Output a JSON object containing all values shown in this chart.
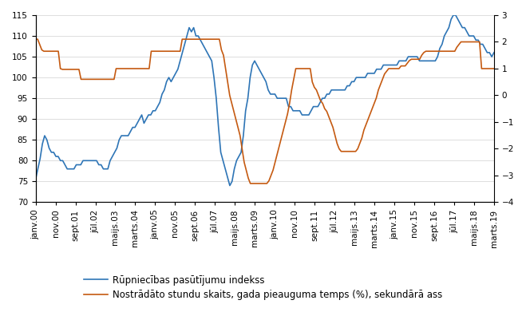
{
  "blue_label": "Rūpniecības pasūtījumu indekss",
  "orange_label": "Nostrādāto stundu skaits, gada pieauguma temps (%), sekundārā ass",
  "left_ylim": [
    70,
    115
  ],
  "right_ylim": [
    -4.0,
    3.0
  ],
  "left_yticks": [
    70,
    75,
    80,
    85,
    90,
    95,
    100,
    105,
    110,
    115
  ],
  "right_yticks": [
    -4.0,
    -3.0,
    -2.0,
    -1.0,
    0.0,
    1.0,
    2.0,
    3.0
  ],
  "blue_color": "#2E75B6",
  "orange_color": "#C55A11",
  "line_width": 1.2,
  "tick_label_fontsize": 7.5,
  "legend_fontsize": 8.5,
  "background_color": "#ffffff",
  "x_tick_labels": [
    "janv.00",
    "nov.00",
    "sept.01",
    "jūl.02",
    "maijs.03",
    "marts.04",
    "janv.05",
    "nov.05",
    "sept.06",
    "jūl.07",
    "maijs.08",
    "marts.09",
    "janv.10",
    "nov.10",
    "sept.11",
    "jūl.12",
    "maijs.13",
    "marts.14",
    "janv.15",
    "nov.15",
    "sept.16",
    "jūl.17",
    "maijs.18",
    "marts.19"
  ],
  "blue_data": [
    75.5,
    78,
    80.5,
    84,
    86,
    85,
    83,
    82,
    82,
    81,
    81,
    80,
    80,
    79,
    78,
    78,
    78,
    78,
    79,
    79,
    79,
    80,
    80,
    80,
    80,
    80,
    80,
    80,
    79,
    79,
    78,
    78,
    78,
    80,
    81,
    82,
    83,
    85,
    86,
    86,
    86,
    86,
    87,
    88,
    88,
    89,
    90,
    91,
    89,
    90,
    91,
    91,
    92,
    92,
    93,
    94,
    96,
    97,
    99,
    100,
    99,
    100,
    101,
    102,
    104,
    106,
    108,
    110,
    112,
    111,
    112,
    110,
    110,
    109,
    108,
    107,
    106,
    105,
    104,
    100,
    95,
    88,
    82,
    80,
    78,
    76,
    74,
    75,
    78,
    80,
    81,
    82,
    86,
    92,
    95,
    100,
    103,
    104,
    103,
    102,
    101,
    100,
    99,
    97,
    96,
    96,
    96,
    95,
    95,
    95,
    95,
    95,
    93,
    93,
    92,
    92,
    92,
    92,
    91,
    91,
    91,
    91,
    92,
    93,
    93,
    93,
    94,
    95,
    95,
    96,
    96,
    97,
    97,
    97,
    97,
    97,
    97,
    97,
    98,
    98,
    99,
    99,
    100,
    100,
    100,
    100,
    100,
    101,
    101,
    101,
    101,
    102,
    102,
    102,
    103,
    103,
    103,
    103,
    103,
    103,
    103,
    104,
    104,
    104,
    104,
    105,
    105,
    105,
    105,
    105,
    104,
    104,
    104,
    104,
    104,
    104,
    104,
    104,
    105,
    107,
    108,
    110,
    111,
    112,
    114,
    115,
    115,
    114,
    113,
    112,
    112,
    111,
    110,
    110,
    110,
    109,
    109,
    108,
    108,
    107,
    106,
    106,
    105,
    106
  ],
  "orange_data": [
    2.1,
    2.1,
    1.9,
    1.7,
    1.65,
    1.65,
    1.65,
    1.65,
    1.65,
    1.65,
    1.65,
    1.65,
    1.0,
    0.97,
    0.97,
    0.97,
    0.97,
    0.97,
    0.97,
    0.97,
    0.97,
    0.97,
    0.6,
    0.6,
    0.6,
    0.6,
    0.6,
    0.6,
    0.6,
    0.6,
    0.6,
    0.6,
    0.6,
    0.6,
    0.6,
    0.6,
    0.6,
    0.6,
    0.6,
    1.0,
    1.0,
    1.0,
    1.0,
    1.0,
    1.0,
    1.0,
    1.0,
    1.0,
    1.0,
    1.0,
    1.0,
    1.0,
    1.0,
    1.0,
    1.0,
    1.0,
    1.65,
    1.65,
    1.65,
    1.65,
    1.65,
    1.65,
    1.65,
    1.65,
    1.65,
    1.65,
    1.65,
    1.65,
    1.65,
    1.65,
    1.65,
    2.1,
    2.1,
    2.1,
    2.1,
    2.1,
    2.1,
    2.1,
    2.1,
    2.1,
    2.1,
    2.1,
    2.1,
    2.1,
    2.1,
    2.1,
    2.1,
    2.1,
    2.1,
    2.1,
    1.7,
    1.5,
    1.0,
    0.5,
    0.0,
    -0.3,
    -0.6,
    -0.9,
    -1.2,
    -1.5,
    -2.0,
    -2.5,
    -2.8,
    -3.1,
    -3.3,
    -3.3,
    -3.3,
    -3.3,
    -3.3,
    -3.3,
    -3.3,
    -3.3,
    -3.3,
    -3.2,
    -3.0,
    -2.8,
    -2.5,
    -2.2,
    -1.9,
    -1.6,
    -1.3,
    -1.0,
    -0.7,
    -0.3,
    0.2,
    0.6,
    1.0,
    1.0,
    1.0,
    1.0,
    1.0,
    1.0,
    1.0,
    1.0,
    0.5,
    0.3,
    0.2,
    0.0,
    -0.2,
    -0.3,
    -0.5,
    -0.6,
    -0.8,
    -1.0,
    -1.2,
    -1.5,
    -1.8,
    -2.0,
    -2.1,
    -2.1,
    -2.1,
    -2.1,
    -2.1,
    -2.1,
    -2.1,
    -2.1,
    -2.0,
    -1.8,
    -1.6,
    -1.3,
    -1.1,
    -0.9,
    -0.7,
    -0.5,
    -0.3,
    -0.1,
    0.2,
    0.4,
    0.6,
    0.8,
    0.9,
    1.0,
    1.0,
    1.0,
    1.0,
    1.0,
    1.0,
    1.1,
    1.1,
    1.1,
    1.2,
    1.3,
    1.35,
    1.35,
    1.35,
    1.35,
    1.35,
    1.5,
    1.6,
    1.65,
    1.65,
    1.65,
    1.65,
    1.65,
    1.65,
    1.65,
    1.65,
    1.65,
    1.65,
    1.65,
    1.65,
    1.65,
    1.65,
    1.65,
    1.8,
    1.9,
    2.0,
    2.0,
    2.0,
    2.0,
    2.0,
    2.0,
    2.0,
    2.0,
    2.0,
    2.0,
    1.0,
    1.0,
    1.0,
    1.0,
    1.0,
    1.0,
    1.0
  ]
}
